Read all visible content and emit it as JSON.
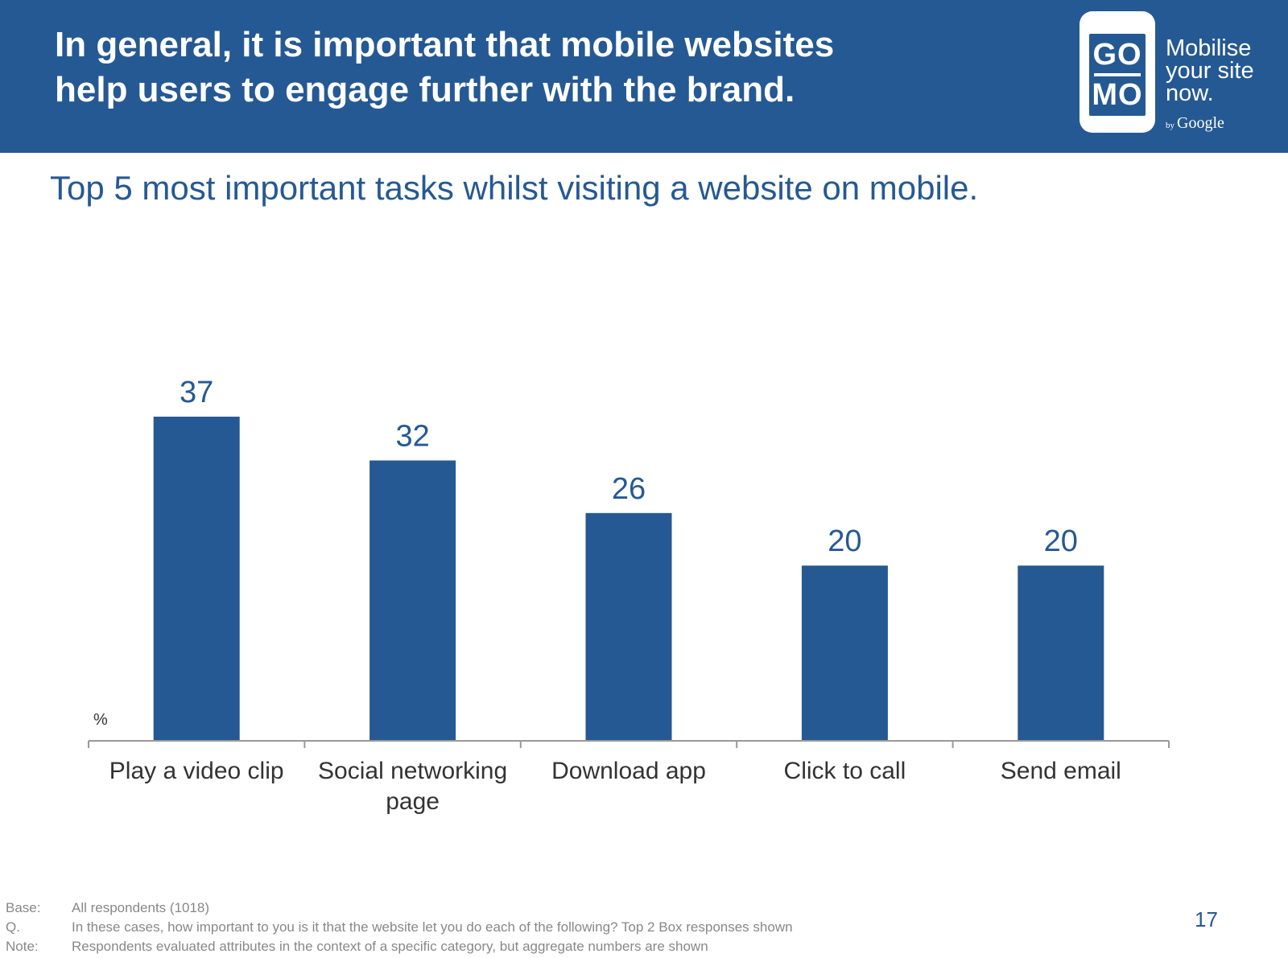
{
  "header": {
    "headline_lines": [
      "In general, it is important that mobile websites",
      "help users to engage further with the brand."
    ],
    "logo": {
      "top_word": "GO",
      "bottom_word": "MO",
      "tagline_lines": [
        "Mobilise",
        "your site",
        "now."
      ],
      "by": "by",
      "brand": "Google"
    }
  },
  "chart_data": {
    "type": "bar",
    "title": "Top 5 most important tasks whilst visiting a website on mobile.",
    "unit_label": "%",
    "categories": [
      "Play a video clip",
      "Social networking page",
      "Download app",
      "Click to call",
      "Send email"
    ],
    "category_label_lines": [
      [
        "Play a video clip"
      ],
      [
        "Social networking",
        "page"
      ],
      [
        "Download app"
      ],
      [
        "Click to call"
      ],
      [
        "Send email"
      ]
    ],
    "values": [
      37,
      32,
      26,
      20,
      20
    ],
    "value_labels": [
      "37",
      "32",
      "26",
      "20",
      "20"
    ],
    "xlabel": "",
    "ylabel": "",
    "ylim": [
      0,
      37
    ],
    "grid": false,
    "legend": "none"
  },
  "footnotes": [
    {
      "key": "Base:",
      "text": "All respondents (1018)"
    },
    {
      "key": "Q.",
      "text": "In these cases, how important to you is it that the website let you do each of the following? Top 2 Box responses shown"
    },
    {
      "key": "Note:",
      "text": "Respondents evaluated attributes in the context of a specific category, but aggregate numbers are shown"
    }
  ],
  "page_number": "17",
  "colors": {
    "brand": "#255993",
    "bar": "#255993",
    "axis": "#999999",
    "body_text": "#333333",
    "footnote_text": "#888888"
  }
}
